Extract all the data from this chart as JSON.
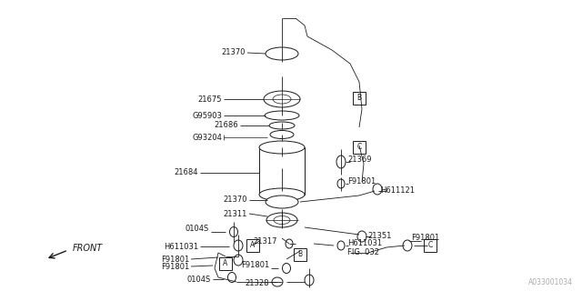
{
  "bg_color": "#ffffff",
  "line_color": "#1a1a1a",
  "text_color": "#1a1a1a",
  "fig_width": 6.4,
  "fig_height": 3.2,
  "dpi": 100,
  "watermark": "A033001034",
  "front_label": "FRONT",
  "xlim": [
    0,
    640
  ],
  "ylim": [
    0,
    320
  ],
  "fs": 6.0
}
